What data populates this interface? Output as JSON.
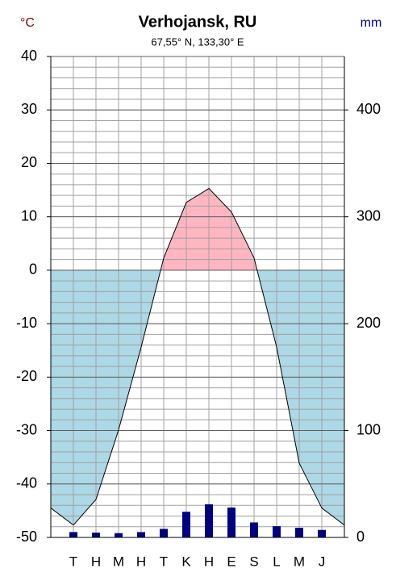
{
  "chart_data": {
    "type": "climate",
    "title": "Verhojansk, RU",
    "subtitle": "67,55° N, 133,30° E",
    "ylabel": "°C",
    "y2label": "mm",
    "categories": [
      "T",
      "H",
      "M",
      "H",
      "T",
      "K",
      "H",
      "E",
      "S",
      "L",
      "M",
      "J"
    ],
    "series": [
      {
        "color": "#000000",
        "values": [
          -47.7,
          -42.9,
          -29.9,
          -14.4,
          2.3,
          12.7,
          15.3,
          10.9,
          2.3,
          -14.4,
          -36.1,
          -44.5
        ]
      },
      {
        "color": "#000080",
        "axis": "y2",
        "values": [
          5,
          4.5,
          4,
          5,
          8,
          24,
          31,
          28,
          14,
          10.5,
          9,
          7
        ]
      }
    ],
    "below_zero_color": "#add8e6",
    "above_zero_color": "#ffb6c1",
    "ylim": [
      -50,
      40
    ],
    "yticks": [
      -50,
      -40,
      -30,
      -20,
      -10,
      0,
      10,
      20,
      30,
      40
    ],
    "y2lim": [
      0,
      450
    ],
    "y2ticks": [
      0,
      100,
      200,
      300,
      400
    ],
    "grid": true
  }
}
